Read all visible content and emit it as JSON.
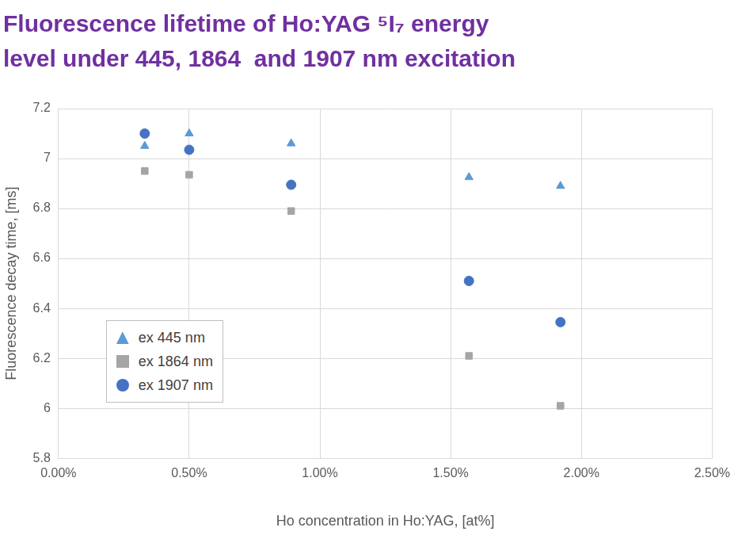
{
  "chart_data": {
    "type": "scatter",
    "title": [
      "Fluorescence lifetime of Ho:YAG ⁵I₇ energy",
      "level under 445, 1864  and 1907 nm excitation"
    ],
    "x_label": "Ho concentration in Ho:YAG, [at%]",
    "y_label": "Fluorescence decay time, [ms]",
    "x": [
      0.33,
      0.5,
      0.89,
      1.57,
      1.92
    ],
    "series": [
      {
        "name": "ex 445 nm",
        "color": "#5b9bd5",
        "marker": "triangle",
        "values": [
          7.05,
          7.1,
          7.06,
          6.925,
          6.89
        ]
      },
      {
        "name": "ex 1864 nm",
        "color": "#a5a5a5",
        "marker": "square",
        "values": [
          6.95,
          6.935,
          6.79,
          6.21,
          6.01
        ]
      },
      {
        "name": "ex 1907 nm",
        "color": "#4472c4",
        "marker": "circle",
        "values": [
          7.1,
          7.035,
          6.895,
          6.51,
          6.345
        ]
      }
    ],
    "xlim": [
      0,
      2.5
    ],
    "xticks": [
      {
        "value": 0,
        "label": "0.00%"
      },
      {
        "value": 0.5,
        "label": "0.50%"
      },
      {
        "value": 1,
        "label": "1.00%"
      },
      {
        "value": 1.5,
        "label": "1.50%"
      },
      {
        "value": 2,
        "label": "2.00%"
      },
      {
        "value": 2.5,
        "label": "2.50%"
      }
    ],
    "ylim": [
      5.8,
      7.2
    ],
    "yticks": [
      5.8,
      6,
      6.2,
      6.4,
      6.6,
      6.8,
      7,
      7.2
    ],
    "grid": true,
    "legend": "lower left"
  }
}
